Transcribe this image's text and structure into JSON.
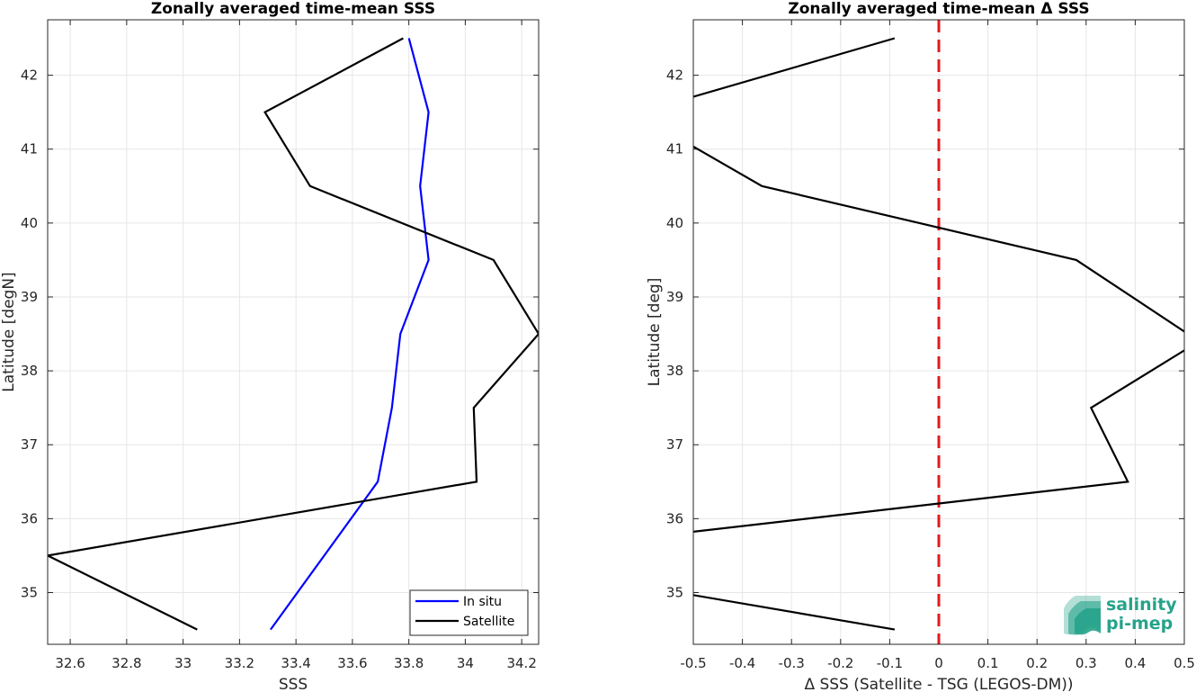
{
  "chart_data": [
    {
      "type": "line",
      "title": "Zonally averaged time-mean SSS",
      "xlabel": "SSS",
      "ylabel": "Latitude [degN]",
      "xlim": [
        32.52,
        34.26
      ],
      "ylim": [
        34.3,
        42.75
      ],
      "xticks": [
        32.6,
        32.8,
        33,
        33.2,
        33.4,
        33.6,
        33.8,
        34,
        34.2
      ],
      "xtick_labels": [
        "32.6",
        "32.8",
        "33",
        "33.2",
        "33.4",
        "33.6",
        "33.8",
        "34",
        "34.2"
      ],
      "yticks": [
        35,
        36,
        37,
        38,
        39,
        40,
        41,
        42
      ],
      "ytick_labels": [
        "35",
        "36",
        "37",
        "38",
        "39",
        "40",
        "41",
        "42"
      ],
      "grid": true,
      "legend_position": "bottom-right",
      "series": [
        {
          "name": "In situ",
          "color": "#0000ff",
          "points": [
            [
              33.31,
              34.5
            ],
            [
              33.69,
              36.5
            ],
            [
              33.74,
              37.5
            ],
            [
              33.77,
              38.5
            ],
            [
              33.87,
              39.5
            ],
            [
              33.84,
              40.5
            ],
            [
              33.87,
              41.5
            ],
            [
              33.8,
              42.5
            ]
          ]
        },
        {
          "name": "Satellite",
          "color": "#000000",
          "points": [
            [
              33.05,
              34.5
            ],
            [
              32.52,
              35.5
            ],
            [
              34.04,
              36.5
            ],
            [
              34.03,
              37.5
            ],
            [
              34.26,
              38.5
            ],
            [
              34.1,
              39.5
            ],
            [
              33.45,
              40.5
            ],
            [
              33.29,
              41.5
            ],
            [
              33.78,
              42.5
            ]
          ]
        }
      ]
    },
    {
      "type": "line",
      "title": "Zonally averaged time-mean Δ SSS",
      "xlabel": "Δ SSS (Satellite - TSG (LEGOS-DM))",
      "ylabel": "Latitude [deg]",
      "xlim": [
        -0.5,
        0.5
      ],
      "ylim": [
        34.3,
        42.75
      ],
      "xticks": [
        -0.5,
        -0.4,
        -0.3,
        -0.2,
        -0.1,
        0,
        0.1,
        0.2,
        0.3,
        0.4,
        0.5
      ],
      "xtick_labels": [
        "-0.5",
        "-0.4",
        "-0.3",
        "-0.2",
        "-0.1",
        "0",
        "0.1",
        "0.2",
        "0.3",
        "0.4",
        "0.5"
      ],
      "yticks": [
        35,
        36,
        37,
        38,
        39,
        40,
        41,
        42
      ],
      "ytick_labels": [
        "35",
        "36",
        "37",
        "38",
        "39",
        "40",
        "41",
        "42"
      ],
      "grid": true,
      "zero_line": {
        "x": 0,
        "color": "#e31a1c",
        "style": "dashed"
      },
      "series": [
        {
          "color": "#000000",
          "points": [
            [
              -0.09,
              34.5
            ],
            [
              -0.53,
              35.0
            ],
            [
              null,
              35.5
            ],
            [
              -0.53,
              35.8
            ],
            [
              0.385,
              36.5
            ],
            [
              0.31,
              37.5
            ],
            [
              0.53,
              38.4
            ],
            [
              0.28,
              39.5
            ],
            [
              -0.36,
              40.5
            ],
            [
              -0.53,
              41.15
            ],
            [
              null,
              41.5
            ],
            [
              -0.53,
              41.65
            ],
            [
              -0.09,
              42.5
            ]
          ]
        }
      ]
    }
  ],
  "logo": {
    "line1": "salinity",
    "line2": "pi-mep",
    "color": "#26a38a"
  }
}
